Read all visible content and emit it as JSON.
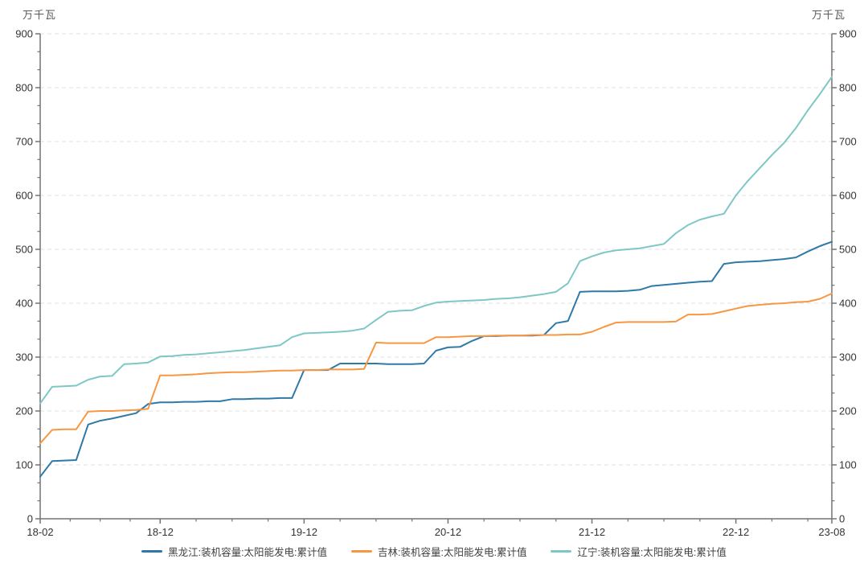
{
  "chart_data": {
    "type": "line",
    "unit_label_left": "万千瓦",
    "unit_label_right": "万千瓦",
    "grid": "horizontal-dashed",
    "legend_position": "bottom",
    "ylim": [
      0,
      900
    ],
    "y_major_step": 100,
    "y_minor_per_major": 3,
    "x": [
      "18-02",
      "18-03",
      "18-04",
      "18-05",
      "18-06",
      "18-07",
      "18-08",
      "18-09",
      "18-10",
      "18-11",
      "18-12",
      "19-01",
      "19-02",
      "19-03",
      "19-04",
      "19-05",
      "19-06",
      "19-07",
      "19-08",
      "19-09",
      "19-10",
      "19-11",
      "19-12",
      "20-01",
      "20-02",
      "20-03",
      "20-04",
      "20-05",
      "20-06",
      "20-07",
      "20-08",
      "20-09",
      "20-10",
      "20-11",
      "20-12",
      "21-01",
      "21-02",
      "21-03",
      "21-04",
      "21-05",
      "21-06",
      "21-07",
      "21-08",
      "21-09",
      "21-10",
      "21-11",
      "21-12",
      "22-01",
      "22-02",
      "22-03",
      "22-04",
      "22-05",
      "22-06",
      "22-07",
      "22-08",
      "22-09",
      "22-10",
      "22-11",
      "22-12",
      "23-01",
      "23-02",
      "23-03",
      "23-04",
      "23-05",
      "23-06",
      "23-07",
      "23-08"
    ],
    "x_major_tick_indices": [
      0,
      10,
      22,
      34,
      46,
      58,
      66
    ],
    "x_minor_tick_indices": [
      2.5,
      5,
      7.5,
      13,
      16,
      19,
      25,
      28,
      31,
      37,
      40,
      43,
      49,
      52,
      55,
      61,
      64
    ],
    "series": [
      {
        "id": "heilongjiang",
        "name": "黑龙江:装机容量:太阳能发电:累计值",
        "color": "#2e79a7",
        "values": [
          78,
          107,
          108,
          109,
          175,
          182,
          186,
          191,
          196,
          213,
          216,
          216,
          217,
          217,
          218,
          218,
          222,
          222,
          223,
          223,
          224,
          224,
          276,
          276,
          276,
          288,
          288,
          288,
          288,
          287,
          287,
          287,
          288,
          312,
          318,
          319,
          330,
          339,
          339,
          340,
          340,
          340,
          341,
          363,
          367,
          421,
          422,
          422,
          422,
          423,
          425,
          432,
          434,
          436,
          438,
          440,
          441,
          473,
          476,
          477,
          478,
          480,
          482,
          485,
          496,
          506,
          514
        ]
      },
      {
        "id": "jilin",
        "name": "吉林:装机容量:太阳能发电:累计值",
        "color": "#f89742",
        "values": [
          140,
          165,
          166,
          166,
          199,
          200,
          200,
          201,
          202,
          204,
          266,
          266,
          267,
          268,
          270,
          271,
          272,
          272,
          273,
          274,
          275,
          275,
          276,
          276,
          277,
          277,
          277,
          278,
          327,
          326,
          326,
          326,
          326,
          337,
          337,
          338,
          339,
          339,
          340,
          340,
          340,
          341,
          341,
          341,
          342,
          342,
          347,
          356,
          364,
          365,
          365,
          365,
          365,
          366,
          379,
          379,
          380,
          385,
          390,
          395,
          397,
          399,
          400,
          402,
          403,
          408,
          418
        ]
      },
      {
        "id": "liaoning",
        "name": "辽宁:装机容量:太阳能发电:累计值",
        "color": "#7dc8c4",
        "values": [
          214,
          245,
          246,
          247,
          258,
          264,
          265,
          287,
          288,
          290,
          301,
          302,
          304,
          305,
          307,
          309,
          311,
          313,
          316,
          319,
          322,
          337,
          344,
          345,
          346,
          347,
          349,
          353,
          369,
          384,
          386,
          387,
          395,
          401,
          403,
          404,
          405,
          406,
          408,
          409,
          411,
          414,
          417,
          421,
          437,
          478,
          487,
          494,
          498,
          500,
          502,
          506,
          510,
          530,
          545,
          555,
          561,
          566,
          600,
          627,
          651,
          675,
          697,
          725,
          758,
          788,
          820
        ]
      }
    ],
    "style": {
      "axis_color": "#737373",
      "grid_color": "#e2e2e2",
      "tick_label_color": "#333333",
      "line_width": 2
    }
  }
}
